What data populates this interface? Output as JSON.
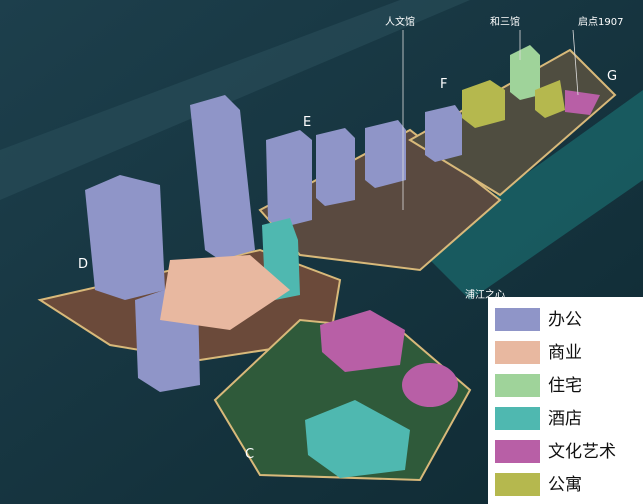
{
  "labels": [
    {
      "text": "人文馆"
    },
    {
      "text": "和三馆"
    },
    {
      "text": "启点1907"
    },
    {
      "text": "浦江之心"
    }
  ],
  "districts": [
    "D",
    "E",
    "F",
    "G",
    "C"
  ],
  "legend": [
    {
      "name": "办公",
      "color": "#8f95c8"
    },
    {
      "name": "商业",
      "color": "#e8b8a0"
    },
    {
      "name": "住宅",
      "color": "#9fd39a"
    },
    {
      "name": "酒店",
      "color": "#4fb8b0"
    },
    {
      "name": "文化艺术",
      "color": "#b85fa6"
    },
    {
      "name": "公寓",
      "color": "#b5b84e"
    }
  ]
}
